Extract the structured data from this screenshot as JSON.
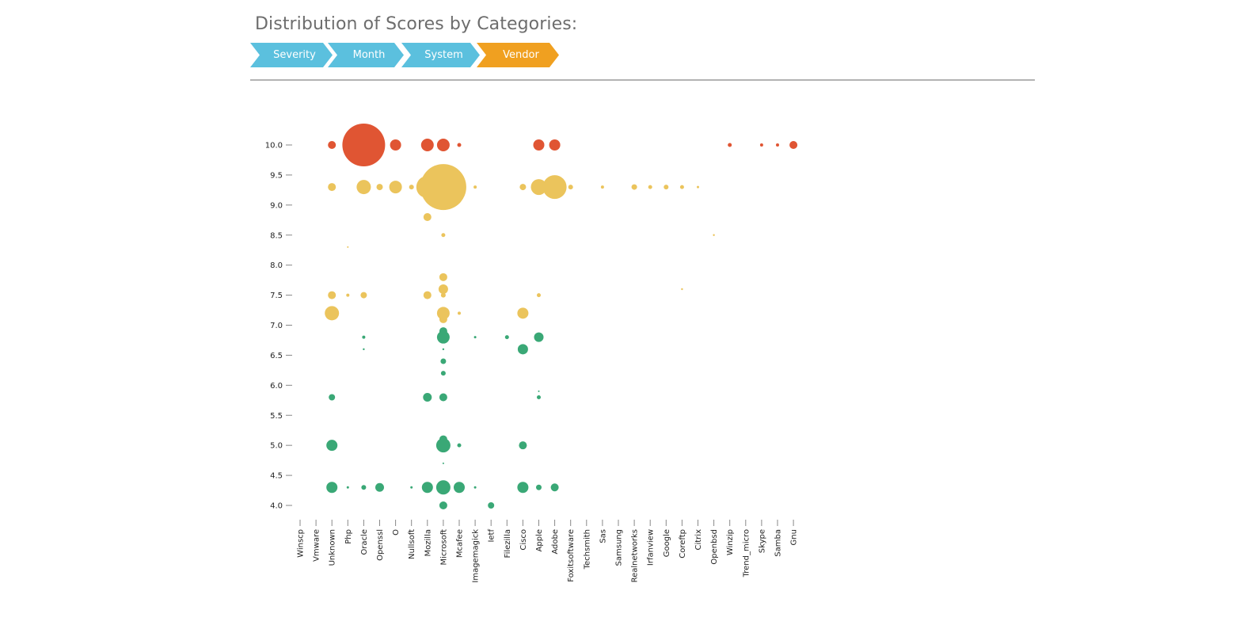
{
  "header": {
    "title": "Distribution of Scores by Categories:"
  },
  "breadcrumbs": [
    {
      "label": "Severity",
      "active": false
    },
    {
      "label": "Month",
      "active": false
    },
    {
      "label": "System",
      "active": false
    },
    {
      "label": "Vendor",
      "active": true
    }
  ],
  "colors": {
    "inactive": "#5bc0de",
    "active": "#f0a020",
    "high": "#e05533",
    "medium": "#ebc45c",
    "low": "#3aa876"
  },
  "chart_data": {
    "type": "scatter",
    "title": "",
    "xlabel": "",
    "ylabel": "",
    "ylim": [
      4.0,
      10.0
    ],
    "yticks": [
      "4.0",
      "4.5",
      "5.0",
      "5.5",
      "6.0",
      "6.5",
      "7.0",
      "7.5",
      "8.0",
      "8.5",
      "9.0",
      "9.5",
      "10.0"
    ],
    "categories": [
      "Winscp",
      "Vmware",
      "Unknown",
      "Php",
      "Oracle",
      "Openssl",
      "O",
      "Nullsoft",
      "Mozilla",
      "Microsoft",
      "Mcafee",
      "Imagemagick",
      "Ietf",
      "Filezilla",
      "Cisco",
      "Apple",
      "Adobe",
      "Foxitsoftware",
      "Techsmith",
      "Sas",
      "Samsung",
      "Realnetworks",
      "Irfanview",
      "Google",
      "Coreftp",
      "Citrix",
      "Openbsd",
      "Winzip",
      "Trend_micro",
      "Skype",
      "Samba",
      "Gnu"
    ],
    "points": [
      {
        "x": "Unknown",
        "y": 10.0,
        "r": 5,
        "level": "high"
      },
      {
        "x": "Oracle",
        "y": 10.0,
        "r": 27,
        "level": "high"
      },
      {
        "x": "O",
        "y": 10.0,
        "r": 7,
        "level": "high"
      },
      {
        "x": "Mozilla",
        "y": 10.0,
        "r": 8,
        "level": "high"
      },
      {
        "x": "Microsoft",
        "y": 10.0,
        "r": 8,
        "level": "high"
      },
      {
        "x": "Mcafee",
        "y": 10.0,
        "r": 2.5,
        "level": "high"
      },
      {
        "x": "Apple",
        "y": 10.0,
        "r": 7,
        "level": "high"
      },
      {
        "x": "Adobe",
        "y": 10.0,
        "r": 7,
        "level": "high"
      },
      {
        "x": "Winzip",
        "y": 10.0,
        "r": 2.5,
        "level": "high"
      },
      {
        "x": "Skype",
        "y": 10.0,
        "r": 2,
        "level": "high"
      },
      {
        "x": "Samba",
        "y": 10.0,
        "r": 2,
        "level": "high"
      },
      {
        "x": "Gnu",
        "y": 10.0,
        "r": 5,
        "level": "high"
      },
      {
        "x": "Unknown",
        "y": 9.3,
        "r": 5,
        "level": "medium"
      },
      {
        "x": "Oracle",
        "y": 9.3,
        "r": 9,
        "level": "medium"
      },
      {
        "x": "Openssl",
        "y": 9.3,
        "r": 4,
        "level": "medium"
      },
      {
        "x": "O",
        "y": 9.3,
        "r": 8,
        "level": "medium"
      },
      {
        "x": "Nullsoft",
        "y": 9.3,
        "r": 3,
        "level": "medium"
      },
      {
        "x": "Mozilla",
        "y": 9.3,
        "r": 14,
        "level": "medium"
      },
      {
        "x": "Microsoft",
        "y": 9.3,
        "r": 29,
        "level": "medium"
      },
      {
        "x": "Microsoft",
        "y": 9.0,
        "r": 6,
        "level": "medium"
      },
      {
        "x": "Imagemagick",
        "y": 9.3,
        "r": 2,
        "level": "medium"
      },
      {
        "x": "Cisco",
        "y": 9.3,
        "r": 4,
        "level": "medium"
      },
      {
        "x": "Apple",
        "y": 9.3,
        "r": 10,
        "level": "medium"
      },
      {
        "x": "Adobe",
        "y": 9.3,
        "r": 15,
        "level": "medium"
      },
      {
        "x": "Foxitsoftware",
        "y": 9.3,
        "r": 3,
        "level": "medium"
      },
      {
        "x": "Sas",
        "y": 9.3,
        "r": 2,
        "level": "medium"
      },
      {
        "x": "Realnetworks",
        "y": 9.3,
        "r": 3.5,
        "level": "medium"
      },
      {
        "x": "Irfanview",
        "y": 9.3,
        "r": 2.5,
        "level": "medium"
      },
      {
        "x": "Google",
        "y": 9.3,
        "r": 3,
        "level": "medium"
      },
      {
        "x": "Coreftp",
        "y": 9.3,
        "r": 2.5,
        "level": "medium"
      },
      {
        "x": "Citrix",
        "y": 9.3,
        "r": 1.5,
        "level": "medium"
      },
      {
        "x": "Mozilla",
        "y": 8.8,
        "r": 5,
        "level": "medium"
      },
      {
        "x": "Microsoft",
        "y": 8.5,
        "r": 2.5,
        "level": "medium"
      },
      {
        "x": "Openbsd",
        "y": 8.5,
        "r": 1.2,
        "level": "medium"
      },
      {
        "x": "Php",
        "y": 8.3,
        "r": 1,
        "level": "medium"
      },
      {
        "x": "Microsoft",
        "y": 7.8,
        "r": 5,
        "level": "medium"
      },
      {
        "x": "Microsoft",
        "y": 7.6,
        "r": 6,
        "level": "medium"
      },
      {
        "x": "Coreftp",
        "y": 7.6,
        "r": 1.2,
        "level": "medium"
      },
      {
        "x": "Unknown",
        "y": 7.5,
        "r": 5,
        "level": "medium"
      },
      {
        "x": "Php",
        "y": 7.5,
        "r": 2,
        "level": "medium"
      },
      {
        "x": "Oracle",
        "y": 7.5,
        "r": 4,
        "level": "medium"
      },
      {
        "x": "Mozilla",
        "y": 7.5,
        "r": 5,
        "level": "medium"
      },
      {
        "x": "Microsoft",
        "y": 7.5,
        "r": 3,
        "level": "medium"
      },
      {
        "x": "Apple",
        "y": 7.5,
        "r": 2.5,
        "level": "medium"
      },
      {
        "x": "Unknown",
        "y": 7.2,
        "r": 9,
        "level": "medium"
      },
      {
        "x": "Microsoft",
        "y": 7.2,
        "r": 8,
        "level": "medium"
      },
      {
        "x": "Microsoft",
        "y": 7.1,
        "r": 5,
        "level": "medium"
      },
      {
        "x": "Mcafee",
        "y": 7.2,
        "r": 2,
        "level": "medium"
      },
      {
        "x": "Cisco",
        "y": 7.2,
        "r": 7,
        "level": "medium"
      },
      {
        "x": "Microsoft",
        "y": 6.9,
        "r": 5,
        "level": "low"
      },
      {
        "x": "Oracle",
        "y": 6.8,
        "r": 2,
        "level": "low"
      },
      {
        "x": "Microsoft",
        "y": 6.8,
        "r": 8,
        "level": "low"
      },
      {
        "x": "Imagemagick",
        "y": 6.8,
        "r": 1.5,
        "level": "low"
      },
      {
        "x": "Filezilla",
        "y": 6.8,
        "r": 2.5,
        "level": "low"
      },
      {
        "x": "Apple",
        "y": 6.8,
        "r": 6,
        "level": "low"
      },
      {
        "x": "Oracle",
        "y": 6.6,
        "r": 1.2,
        "level": "low"
      },
      {
        "x": "Microsoft",
        "y": 6.6,
        "r": 1.2,
        "level": "low"
      },
      {
        "x": "Cisco",
        "y": 6.6,
        "r": 6.5,
        "level": "low"
      },
      {
        "x": "Microsoft",
        "y": 6.4,
        "r": 3.5,
        "level": "low"
      },
      {
        "x": "Microsoft",
        "y": 6.2,
        "r": 3,
        "level": "low"
      },
      {
        "x": "Apple",
        "y": 5.9,
        "r": 1,
        "level": "low"
      },
      {
        "x": "Unknown",
        "y": 5.8,
        "r": 4,
        "level": "low"
      },
      {
        "x": "Mozilla",
        "y": 5.8,
        "r": 5.5,
        "level": "low"
      },
      {
        "x": "Microsoft",
        "y": 5.8,
        "r": 5,
        "level": "low"
      },
      {
        "x": "Apple",
        "y": 5.8,
        "r": 2.5,
        "level": "low"
      },
      {
        "x": "Microsoft",
        "y": 5.1,
        "r": 5,
        "level": "low"
      },
      {
        "x": "Unknown",
        "y": 5.0,
        "r": 7,
        "level": "low"
      },
      {
        "x": "Microsoft",
        "y": 5.0,
        "r": 9,
        "level": "low"
      },
      {
        "x": "Mcafee",
        "y": 5.0,
        "r": 2.5,
        "level": "low"
      },
      {
        "x": "Cisco",
        "y": 5.0,
        "r": 5,
        "level": "low"
      },
      {
        "x": "Microsoft",
        "y": 4.7,
        "r": 1,
        "level": "low"
      },
      {
        "x": "Unknown",
        "y": 4.3,
        "r": 7,
        "level": "low"
      },
      {
        "x": "Php",
        "y": 4.3,
        "r": 1.5,
        "level": "low"
      },
      {
        "x": "Oracle",
        "y": 4.3,
        "r": 3,
        "level": "low"
      },
      {
        "x": "Openssl",
        "y": 4.3,
        "r": 5.5,
        "level": "low"
      },
      {
        "x": "Nullsoft",
        "y": 4.3,
        "r": 1.5,
        "level": "low"
      },
      {
        "x": "Mozilla",
        "y": 4.3,
        "r": 7,
        "level": "low"
      },
      {
        "x": "Microsoft",
        "y": 4.3,
        "r": 9,
        "level": "low"
      },
      {
        "x": "Mcafee",
        "y": 4.3,
        "r": 7,
        "level": "low"
      },
      {
        "x": "Imagemagick",
        "y": 4.3,
        "r": 1.5,
        "level": "low"
      },
      {
        "x": "Cisco",
        "y": 4.3,
        "r": 7,
        "level": "low"
      },
      {
        "x": "Apple",
        "y": 4.3,
        "r": 3.5,
        "level": "low"
      },
      {
        "x": "Adobe",
        "y": 4.3,
        "r": 5,
        "level": "low"
      },
      {
        "x": "Microsoft",
        "y": 4.0,
        "r": 5,
        "level": "low"
      },
      {
        "x": "Ietf",
        "y": 4.0,
        "r": 4,
        "level": "low"
      }
    ]
  }
}
